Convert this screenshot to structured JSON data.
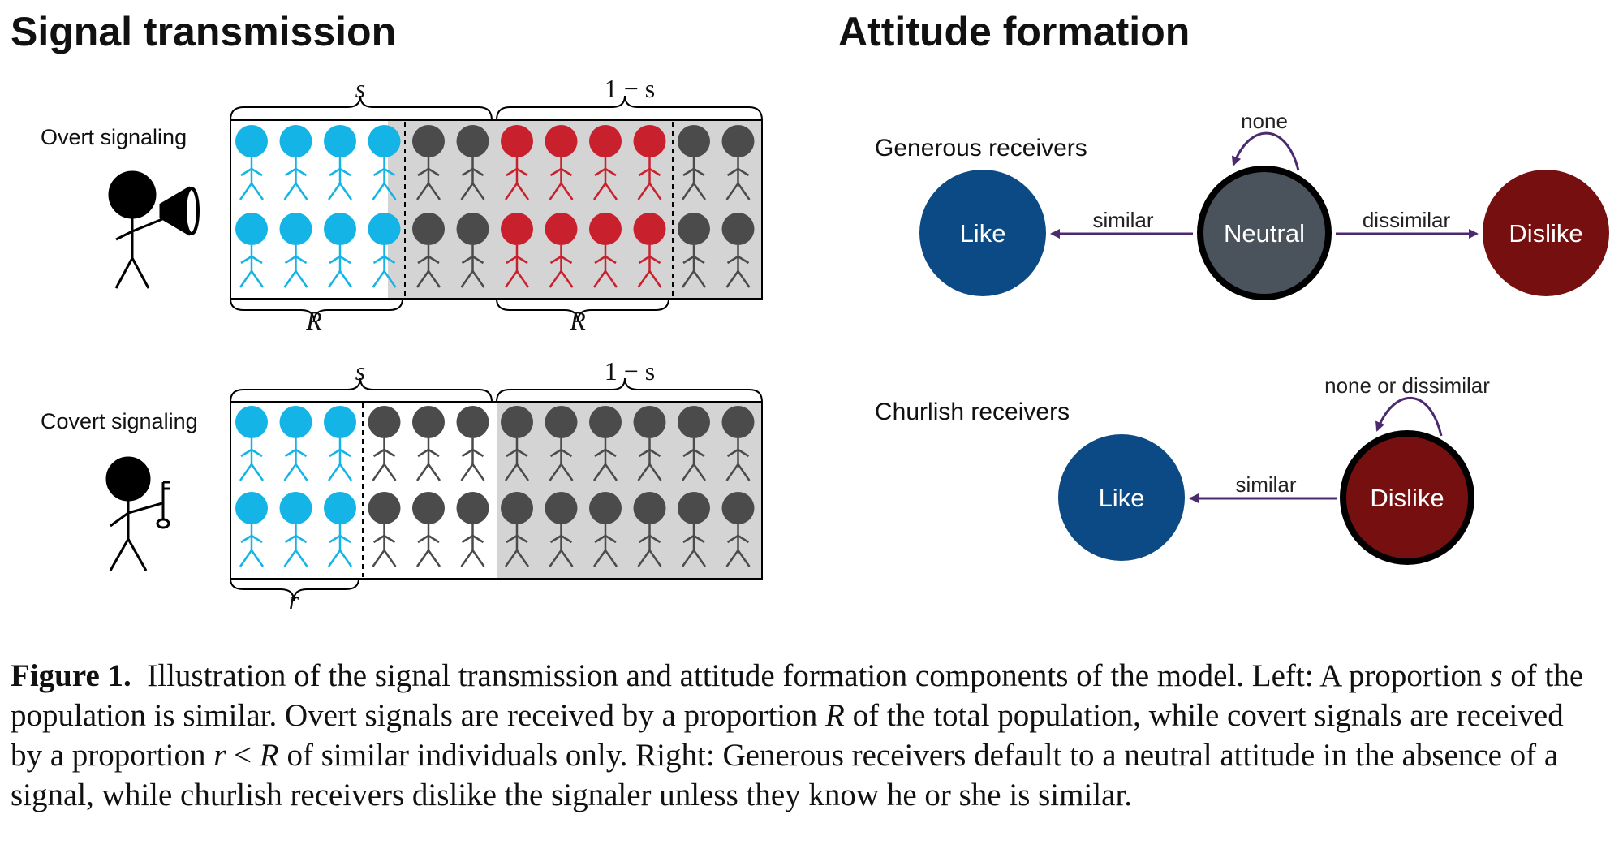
{
  "left_panel": {
    "title": "Signal transmission",
    "overt": {
      "label": "Overt signaling",
      "brace_top_left": "s",
      "brace_top_right": "1 − s",
      "brace_bottom_left": "R",
      "brace_bottom_right": "R",
      "rows": [
        [
          "blue",
          "blue",
          "blue",
          "blue",
          "dark",
          "dark",
          "red",
          "red",
          "red",
          "red",
          "dark",
          "dark"
        ],
        [
          "blue",
          "blue",
          "blue",
          "blue",
          "dark",
          "dark",
          "red",
          "red",
          "red",
          "red",
          "dark",
          "dark"
        ]
      ]
    },
    "covert": {
      "label": "Covert signaling",
      "brace_top_left": "s",
      "brace_top_right": "1 − s",
      "brace_bottom_left": "r",
      "rows": [
        [
          "blue",
          "blue",
          "blue",
          "dark",
          "dark",
          "dark",
          "dark",
          "dark",
          "dark",
          "dark",
          "dark",
          "dark"
        ],
        [
          "blue",
          "blue",
          "blue",
          "dark",
          "dark",
          "dark",
          "dark",
          "dark",
          "dark",
          "dark",
          "dark",
          "dark"
        ]
      ]
    }
  },
  "right_panel": {
    "title": "Attitude formation",
    "generous": {
      "label": "Generous receivers",
      "node_like": "Like",
      "node_neutral": "Neutral",
      "node_dislike": "Dislike",
      "edge_left": "similar",
      "edge_right": "dissimilar",
      "self_loop": "none"
    },
    "churlish": {
      "label": "Churlish receivers",
      "node_like": "Like",
      "node_dislike": "Dislike",
      "edge_left": "similar",
      "self_loop": "none or dissimilar"
    }
  },
  "caption": {
    "figure_label": "Figure 1.",
    "part1": "Illustration of the signal transmission and attitude formation components of the model. Left: A proportion ",
    "var_s": "s",
    "part2": " of the population is similar. Overt signals are received by a proportion ",
    "var_R": "R",
    "part3": " of the total population, while covert signals are received by a proportion ",
    "var_r": "r",
    "lt": " < ",
    "var_R2": "R",
    "part4": " of similar individuals only. Right: Generous receivers default to a neutral attitude in the absence of a signal, while churlish receivers dislike the signaler unless they know he or she is similar."
  },
  "colors": {
    "blue_person": "#14b4e6",
    "red_person": "#c8202d",
    "dark_person": "#4b4b4b",
    "gray_fill": "#d4d4d4",
    "like_node": "#0b4a84",
    "neutral_node": "#4a525c",
    "dislike_node": "#760f10",
    "arrow": "#4b2a6e"
  }
}
